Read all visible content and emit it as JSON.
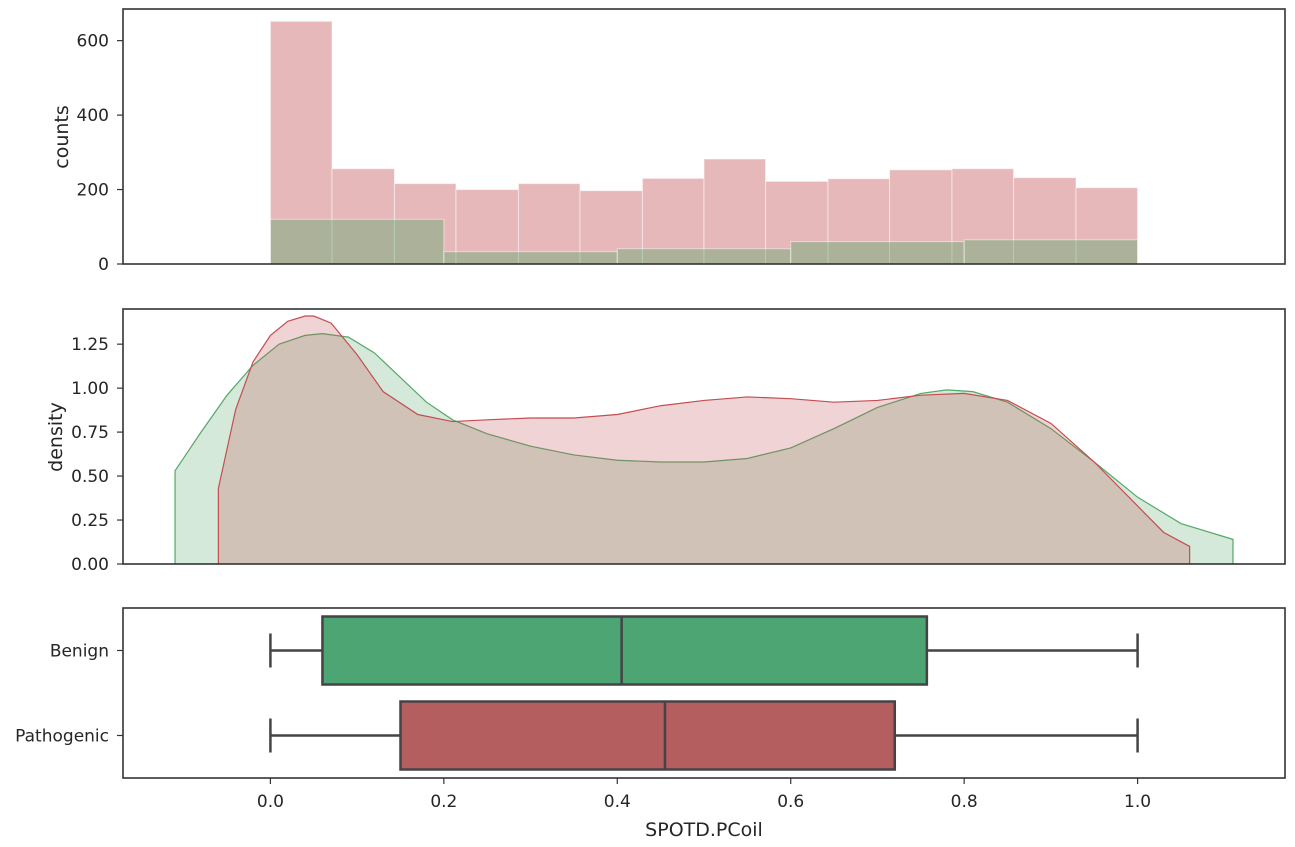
{
  "chart_data": [
    {
      "type": "bar",
      "subtype": "histogram",
      "ylabel": "counts",
      "xlim": [
        -0.17,
        1.17
      ],
      "ylim": [
        0,
        685
      ],
      "yticks": [
        0,
        200,
        400,
        600
      ],
      "grid": false,
      "series": [
        {
          "bins": [
            [
              0.0,
              0.071
            ],
            [
              0.071,
              0.143
            ],
            [
              0.143,
              0.214
            ],
            [
              0.214,
              0.286
            ],
            [
              0.286,
              0.357
            ],
            [
              0.357,
              0.429
            ],
            [
              0.429,
              0.5
            ],
            [
              0.5,
              0.571
            ],
            [
              0.571,
              0.643
            ],
            [
              0.643,
              0.714
            ],
            [
              0.714,
              0.786
            ],
            [
              0.786,
              0.857
            ],
            [
              0.857,
              0.929
            ],
            [
              0.929,
              1.0
            ]
          ],
          "values": [
            652,
            256,
            216,
            200,
            216,
            197,
            230,
            282,
            222,
            229,
            253,
            256,
            232,
            205
          ],
          "color": "#c44e52"
        },
        {
          "bins": [
            [
              0.0,
              0.2
            ],
            [
              0.2,
              0.4
            ],
            [
              0.4,
              0.6
            ],
            [
              0.6,
              0.8
            ],
            [
              0.8,
              1.0
            ]
          ],
          "values": [
            120,
            33,
            41,
            60,
            65
          ],
          "color": "#55a868"
        }
      ]
    },
    {
      "type": "area",
      "subtype": "kde",
      "ylabel": "density",
      "xlim": [
        -0.17,
        1.17
      ],
      "ylim": [
        0,
        1.45
      ],
      "yticks": [
        "0.00",
        "0.25",
        "0.50",
        "0.75",
        "1.00",
        "1.25"
      ],
      "grid": false,
      "series": [
        {
          "color": "#55a868",
          "x": [
            -0.11,
            -0.08,
            -0.05,
            -0.02,
            0.01,
            0.04,
            0.06,
            0.09,
            0.12,
            0.15,
            0.18,
            0.21,
            0.25,
            0.3,
            0.35,
            0.4,
            0.45,
            0.5,
            0.55,
            0.6,
            0.65,
            0.7,
            0.75,
            0.78,
            0.81,
            0.85,
            0.9,
            0.95,
            1.0,
            1.05,
            1.11
          ],
          "y": [
            0.53,
            0.75,
            0.96,
            1.13,
            1.25,
            1.3,
            1.31,
            1.29,
            1.2,
            1.06,
            0.92,
            0.82,
            0.74,
            0.67,
            0.62,
            0.59,
            0.58,
            0.58,
            0.6,
            0.66,
            0.77,
            0.89,
            0.97,
            0.99,
            0.98,
            0.92,
            0.77,
            0.58,
            0.38,
            0.23,
            0.14
          ]
        },
        {
          "color": "#c44e52",
          "x": [
            -0.06,
            -0.04,
            -0.02,
            0.0,
            0.02,
            0.04,
            0.05,
            0.07,
            0.1,
            0.13,
            0.17,
            0.21,
            0.25,
            0.3,
            0.35,
            0.4,
            0.45,
            0.5,
            0.55,
            0.6,
            0.65,
            0.7,
            0.75,
            0.8,
            0.85,
            0.9,
            0.95,
            1.0,
            1.03,
            1.06
          ],
          "y": [
            0.43,
            0.88,
            1.15,
            1.3,
            1.38,
            1.41,
            1.41,
            1.37,
            1.19,
            0.98,
            0.85,
            0.81,
            0.82,
            0.83,
            0.83,
            0.85,
            0.9,
            0.93,
            0.95,
            0.94,
            0.92,
            0.93,
            0.96,
            0.97,
            0.93,
            0.8,
            0.58,
            0.33,
            0.18,
            0.1
          ]
        }
      ]
    },
    {
      "type": "box",
      "xlabel": "SPOTD.PCoil",
      "xlim": [
        -0.17,
        1.17
      ],
      "xticks": [
        "0.0",
        "0.2",
        "0.4",
        "0.6",
        "0.8",
        "1.0"
      ],
      "categories": [
        "Benign",
        "Pathogenic"
      ],
      "grid": false,
      "boxes": [
        {
          "label": "Benign",
          "whisker_low": 0.0,
          "q1": 0.06,
          "median": 0.405,
          "q3": 0.757,
          "whisker_high": 1.0,
          "color": "#4ca572"
        },
        {
          "label": "Pathogenic",
          "whisker_low": 0.0,
          "q1": 0.15,
          "median": 0.455,
          "q3": 0.72,
          "whisker_high": 1.0,
          "color": "#b55e60"
        }
      ]
    }
  ]
}
